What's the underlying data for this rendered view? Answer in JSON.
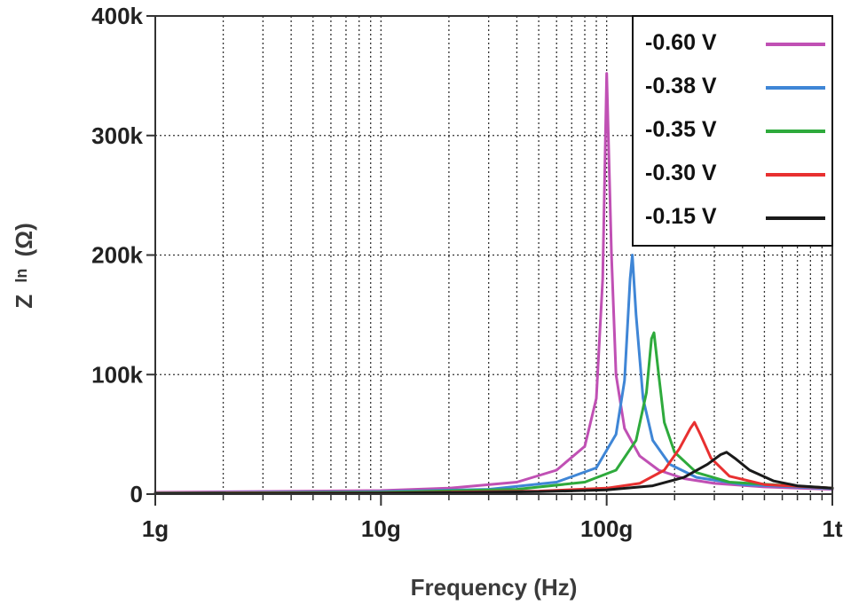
{
  "chart_data": {
    "type": "line",
    "xscale": "log",
    "xlabel": "Frequency (Hz)",
    "ylabel_main": "Z",
    "ylabel_sub": "In",
    "ylabel_unit": "(Ω)",
    "xlim": [
      1000000000.0,
      1000000000000.0
    ],
    "ylim": [
      0,
      400000
    ],
    "x_ticks": [
      {
        "value": 1000000000.0,
        "label": "1g"
      },
      {
        "value": 10000000000.0,
        "label": "10g"
      },
      {
        "value": 100000000000.0,
        "label": "100g"
      },
      {
        "value": 1000000000000.0,
        "label": "1t"
      }
    ],
    "y_ticks": [
      {
        "value": 0,
        "label": "0"
      },
      {
        "value": 100000,
        "label": "100k"
      },
      {
        "value": 200000,
        "label": "200k"
      },
      {
        "value": 300000,
        "label": "300k"
      },
      {
        "value": 400000,
        "label": "400k"
      }
    ],
    "grid": true,
    "legend_position": "top-right",
    "series": [
      {
        "name": "-0.60 V",
        "color": "#c050b4",
        "points": [
          [
            1000000000.0,
            1500
          ],
          [
            10000000000.0,
            3000
          ],
          [
            20000000000.0,
            5000
          ],
          [
            40000000000.0,
            10000
          ],
          [
            60000000000.0,
            20000
          ],
          [
            80000000000.0,
            40000
          ],
          [
            90000000000.0,
            80000
          ],
          [
            96000000000.0,
            180000
          ],
          [
            100000000000.0,
            352000
          ],
          [
            105000000000.0,
            200000
          ],
          [
            110000000000.0,
            100000
          ],
          [
            120000000000.0,
            55000
          ],
          [
            140000000000.0,
            32000
          ],
          [
            170000000000.0,
            20000
          ],
          [
            220000000000.0,
            13000
          ],
          [
            300000000000.0,
            9000
          ],
          [
            500000000000.0,
            6000
          ],
          [
            1000000000000.0,
            4000
          ]
        ]
      },
      {
        "name": "-0.38 V",
        "color": "#3f86d6",
        "points": [
          [
            1000000000.0,
            1000
          ],
          [
            10000000000.0,
            2000
          ],
          [
            30000000000.0,
            4000
          ],
          [
            60000000000.0,
            10000
          ],
          [
            90000000000.0,
            22000
          ],
          [
            110000000000.0,
            50000
          ],
          [
            120000000000.0,
            95000
          ],
          [
            127000000000.0,
            180000
          ],
          [
            130000000000.0,
            200000
          ],
          [
            135000000000.0,
            150000
          ],
          [
            145000000000.0,
            80000
          ],
          [
            160000000000.0,
            45000
          ],
          [
            190000000000.0,
            25000
          ],
          [
            250000000000.0,
            14000
          ],
          [
            400000000000.0,
            8000
          ],
          [
            1000000000000.0,
            4500
          ]
        ]
      },
      {
        "name": "-0.35 V",
        "color": "#2eaa3c",
        "points": [
          [
            1000000000.0,
            800
          ],
          [
            10000000000.0,
            1500
          ],
          [
            40000000000.0,
            4000
          ],
          [
            80000000000.0,
            10000
          ],
          [
            110000000000.0,
            20000
          ],
          [
            135000000000.0,
            45000
          ],
          [
            150000000000.0,
            85000
          ],
          [
            158000000000.0,
            130000
          ],
          [
            162000000000.0,
            135000
          ],
          [
            170000000000.0,
            100000
          ],
          [
            180000000000.0,
            60000
          ],
          [
            200000000000.0,
            35000
          ],
          [
            250000000000.0,
            18000
          ],
          [
            350000000000.0,
            10000
          ],
          [
            1000000000000.0,
            5000
          ]
        ]
      },
      {
        "name": "-0.30 V",
        "color": "#e83030",
        "points": [
          [
            1000000000.0,
            600
          ],
          [
            10000000000.0,
            1000
          ],
          [
            50000000000.0,
            2500
          ],
          [
            100000000000.0,
            5000
          ],
          [
            140000000000.0,
            9000
          ],
          [
            180000000000.0,
            20000
          ],
          [
            210000000000.0,
            38000
          ],
          [
            235000000000.0,
            55000
          ],
          [
            245000000000.0,
            60000
          ],
          [
            260000000000.0,
            50000
          ],
          [
            290000000000.0,
            30000
          ],
          [
            350000000000.0,
            15000
          ],
          [
            500000000000.0,
            8000
          ],
          [
            1000000000000.0,
            5000
          ]
        ]
      },
      {
        "name": "-0.15 V",
        "color": "#1a1a1a",
        "points": [
          [
            1000000000.0,
            400
          ],
          [
            10000000000.0,
            800
          ],
          [
            50000000000.0,
            2000
          ],
          [
            100000000000.0,
            3500
          ],
          [
            160000000000.0,
            7000
          ],
          [
            220000000000.0,
            14000
          ],
          [
            280000000000.0,
            25000
          ],
          [
            320000000000.0,
            33000
          ],
          [
            340000000000.0,
            35000
          ],
          [
            370000000000.0,
            30000
          ],
          [
            430000000000.0,
            20000
          ],
          [
            550000000000.0,
            11000
          ],
          [
            700000000000.0,
            7000
          ],
          [
            1000000000000.0,
            5000
          ]
        ]
      }
    ]
  }
}
